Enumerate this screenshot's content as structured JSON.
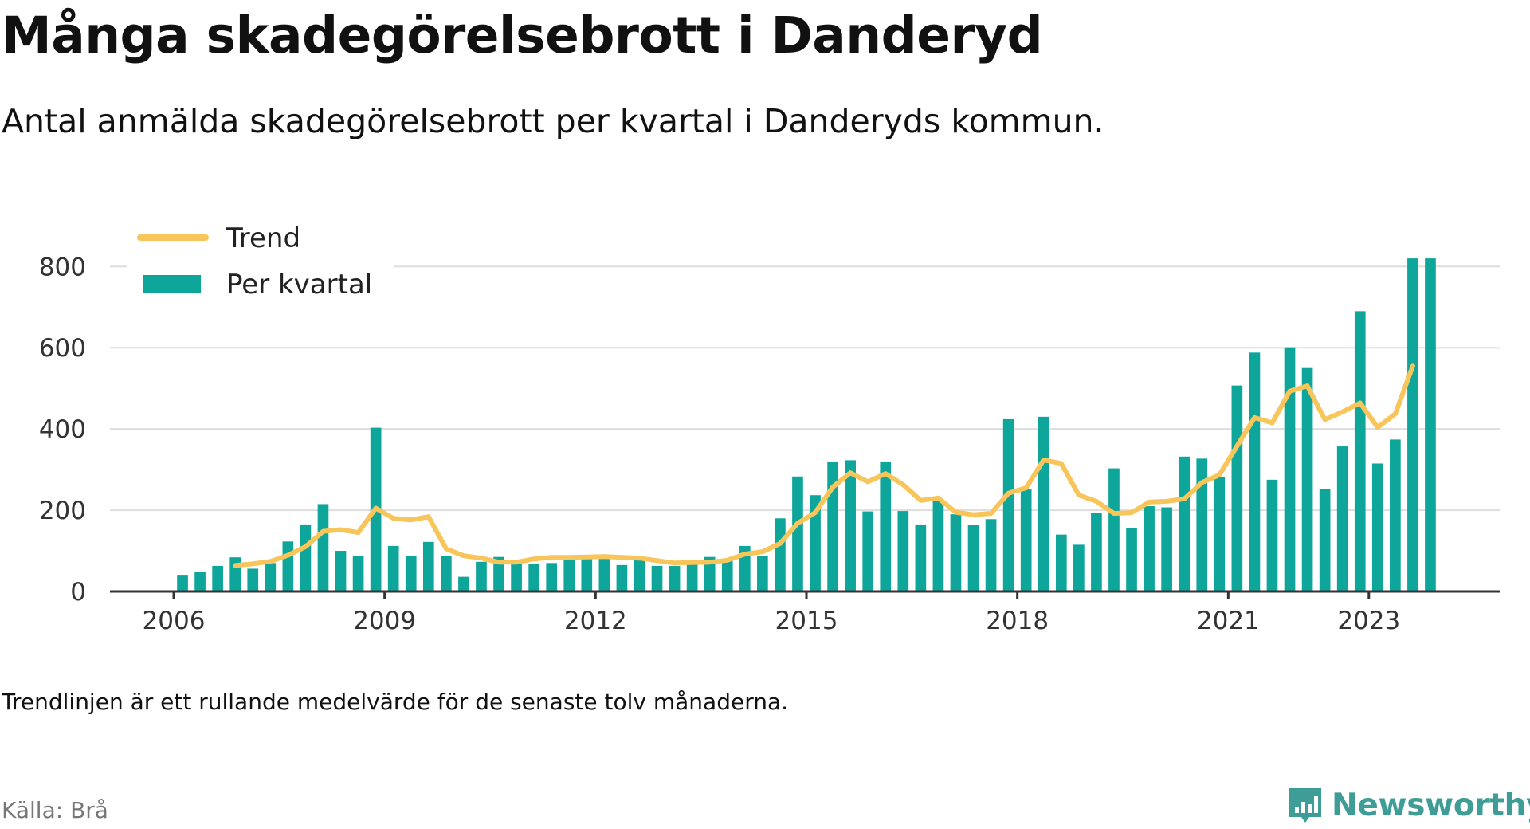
{
  "title": "Många skadegörelsebrott i Danderyd",
  "subtitle": "Antal anmälda skadegörelsebrott per kvartal i Danderyds kommun.",
  "note": "Trendlinjen är ett rullande medelvärde för de senaste tolv månaderna.",
  "source": "Källa: Brå",
  "brand": "Newsworthy",
  "colors": {
    "bars": "#0ea69b",
    "trend": "#f7c55a",
    "grid": "#dddddd",
    "axis": "#333333",
    "brand": "#3e9d96"
  },
  "chart_data": {
    "type": "bar",
    "x_unit": "quarter",
    "x": [
      "2006-Q1",
      "2006-Q2",
      "2006-Q3",
      "2006-Q4",
      "2007-Q1",
      "2007-Q2",
      "2007-Q3",
      "2007-Q4",
      "2008-Q1",
      "2008-Q2",
      "2008-Q3",
      "2008-Q4",
      "2009-Q1",
      "2009-Q2",
      "2009-Q3",
      "2009-Q4",
      "2010-Q1",
      "2010-Q2",
      "2010-Q3",
      "2010-Q4",
      "2011-Q1",
      "2011-Q2",
      "2011-Q3",
      "2011-Q4",
      "2012-Q1",
      "2012-Q2",
      "2012-Q3",
      "2012-Q4",
      "2013-Q1",
      "2013-Q2",
      "2013-Q3",
      "2013-Q4",
      "2014-Q1",
      "2014-Q2",
      "2014-Q3",
      "2014-Q4",
      "2015-Q1",
      "2015-Q2",
      "2015-Q3",
      "2015-Q4",
      "2016-Q1",
      "2016-Q2",
      "2016-Q3",
      "2016-Q4",
      "2017-Q1",
      "2017-Q2",
      "2017-Q3",
      "2017-Q4",
      "2018-Q1",
      "2018-Q2",
      "2018-Q3",
      "2018-Q4",
      "2019-Q1",
      "2019-Q2",
      "2019-Q3",
      "2019-Q4",
      "2020-Q1",
      "2020-Q2",
      "2020-Q3",
      "2020-Q4",
      "2021-Q1",
      "2021-Q2",
      "2021-Q3",
      "2021-Q4",
      "2022-Q1",
      "2022-Q2",
      "2022-Q3",
      "2022-Q4",
      "2023-Q1",
      "2023-Q2",
      "2023-Q3",
      "2023-Q4"
    ],
    "series": [
      {
        "name": "Per kvartal",
        "type": "bar",
        "values": [
          41,
          48,
          63,
          84,
          56,
          70,
          123,
          165,
          215,
          100,
          87,
          403,
          112,
          87,
          122,
          87,
          36,
          73,
          85,
          73,
          68,
          70,
          85,
          84,
          86,
          65,
          78,
          63,
          63,
          66,
          85,
          80,
          112,
          87,
          180,
          283,
          237,
          320,
          323,
          197,
          318,
          198,
          165,
          222,
          190,
          163,
          178,
          424,
          251,
          430,
          140,
          115,
          193,
          303,
          155,
          210,
          207,
          332,
          327,
          282,
          507,
          588,
          275,
          601,
          550,
          252,
          357,
          690,
          315,
          374,
          820,
          820
        ]
      },
      {
        "name": "Trend",
        "type": "line",
        "values": [
          null,
          null,
          null,
          64,
          68,
          74,
          89,
          110,
          148,
          152,
          145,
          205,
          180,
          176,
          184,
          105,
          88,
          82,
          72,
          72,
          80,
          84,
          84,
          85,
          86,
          84,
          82,
          76,
          70,
          71,
          72,
          77,
          92,
          98,
          118,
          168,
          194,
          257,
          292,
          270,
          290,
          263,
          224,
          230,
          195,
          189,
          192,
          242,
          255,
          324,
          315,
          237,
          222,
          192,
          194,
          220,
          222,
          228,
          268,
          287,
          358,
          428,
          415,
          493,
          506,
          423,
          442,
          464,
          404,
          437,
          555,
          null
        ]
      }
    ],
    "x_ticks": [
      "2006",
      "2009",
      "2012",
      "2015",
      "2018",
      "2021",
      "2023"
    ],
    "y_ticks": [
      0,
      200,
      400,
      600,
      800
    ],
    "ylim": [
      0,
      830
    ],
    "xlabel": "",
    "ylabel": "",
    "grid": true,
    "legend_position": "top-left"
  }
}
